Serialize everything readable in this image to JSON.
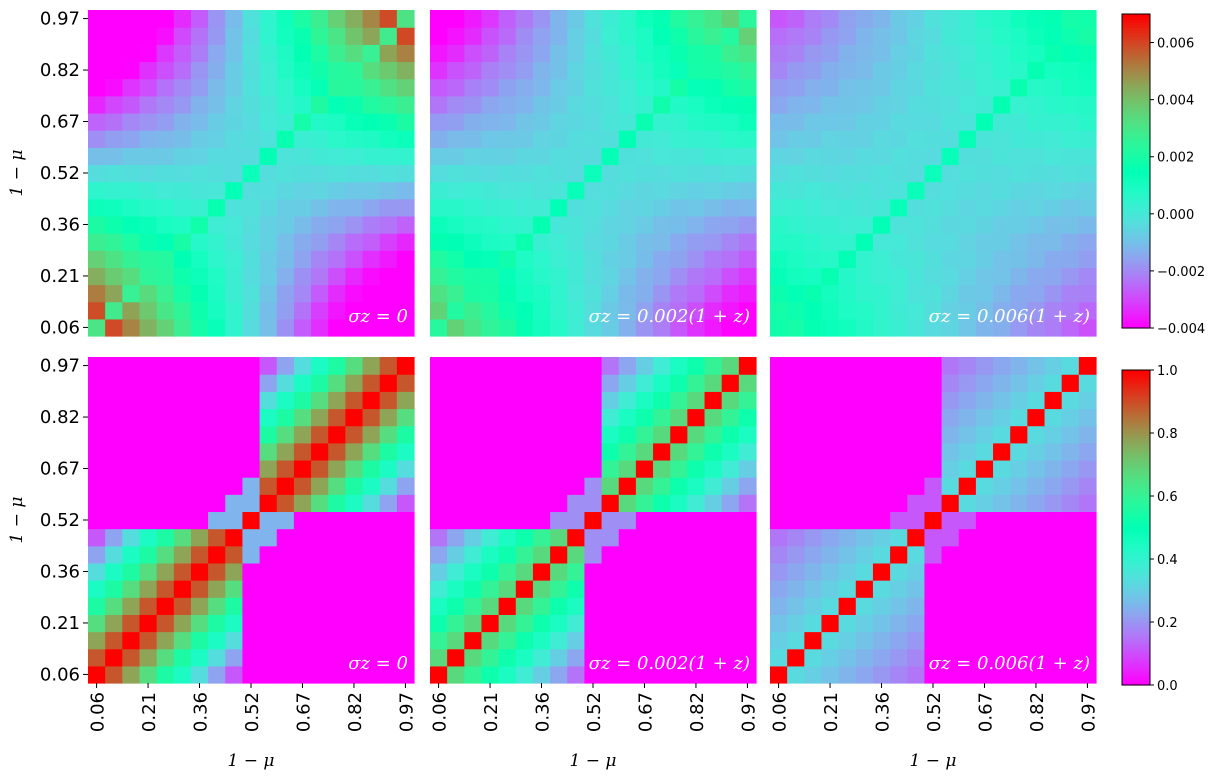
{
  "colormap": "rainbow",
  "chart_data": [
    {
      "type": "heatmap",
      "row": 0,
      "col": 0,
      "annotation": "σz = 0",
      "sigma_z": 0,
      "n": 19,
      "vlim": [
        -0.004,
        0.007
      ],
      "ylabel": "1 − μ",
      "xlabel": "",
      "xticks": false,
      "yticks": true,
      "tick_labels": [
        "0.06",
        "0.21",
        "0.36",
        "0.52",
        "0.67",
        "0.82",
        "0.97"
      ]
    },
    {
      "type": "heatmap",
      "row": 0,
      "col": 1,
      "annotation": "σz = 0.002(1 + z)",
      "sigma_z": 0.002,
      "n": 19,
      "vlim": [
        -0.004,
        0.007
      ],
      "ylabel": "",
      "xlabel": "",
      "xticks": false,
      "yticks": false,
      "tick_labels": [
        "0.06",
        "0.21",
        "0.36",
        "0.52",
        "0.67",
        "0.82",
        "0.97"
      ]
    },
    {
      "type": "heatmap",
      "row": 0,
      "col": 2,
      "annotation": "σz = 0.006(1 + z)",
      "sigma_z": 0.006,
      "n": 19,
      "vlim": [
        -0.004,
        0.007
      ],
      "ylabel": "",
      "xlabel": "",
      "xticks": false,
      "yticks": false,
      "tick_labels": [
        "0.06",
        "0.21",
        "0.36",
        "0.52",
        "0.67",
        "0.82",
        "0.97"
      ]
    },
    {
      "type": "heatmap",
      "row": 1,
      "col": 0,
      "annotation": "σz = 0",
      "sigma_z": 0,
      "n": 19,
      "vlim": [
        0,
        1
      ],
      "ylabel": "1 − μ",
      "xlabel": "1 − μ",
      "xticks": true,
      "yticks": true,
      "tick_labels": [
        "0.06",
        "0.21",
        "0.36",
        "0.52",
        "0.67",
        "0.82",
        "0.97"
      ]
    },
    {
      "type": "heatmap",
      "row": 1,
      "col": 1,
      "annotation": "σz = 0.002(1 + z)",
      "sigma_z": 0.002,
      "n": 19,
      "vlim": [
        0,
        1
      ],
      "ylabel": "",
      "xlabel": "1 − μ",
      "xticks": true,
      "yticks": false,
      "tick_labels": [
        "0.06",
        "0.21",
        "0.36",
        "0.52",
        "0.67",
        "0.82",
        "0.97"
      ]
    },
    {
      "type": "heatmap",
      "row": 1,
      "col": 2,
      "annotation": "σz = 0.006(1 + z)",
      "sigma_z": 0.006,
      "n": 19,
      "vlim": [
        0,
        1
      ],
      "ylabel": "",
      "xlabel": "1 − μ",
      "xticks": true,
      "yticks": false,
      "tick_labels": [
        "0.06",
        "0.21",
        "0.36",
        "0.52",
        "0.67",
        "0.82",
        "0.97"
      ]
    }
  ],
  "colorbars": [
    {
      "row": 0,
      "vmin": -0.004,
      "vmax": 0.007,
      "ticks": [
        -0.004,
        -0.002,
        0.0,
        0.002,
        0.004,
        0.006
      ],
      "labels": [
        "−0.004",
        "−0.002",
        "0.000",
        "0.002",
        "0.004",
        "0.006"
      ]
    },
    {
      "row": 1,
      "vmin": 0,
      "vmax": 1,
      "ticks": [
        0,
        0.2,
        0.4,
        0.6,
        0.8,
        1.0
      ],
      "labels": [
        "0.0",
        "0.2",
        "0.4",
        "0.6",
        "0.8",
        "1.0"
      ]
    }
  ]
}
